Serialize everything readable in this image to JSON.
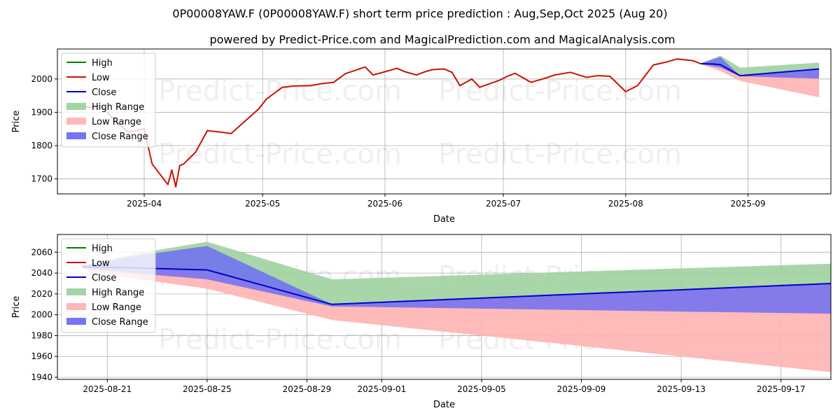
{
  "title": "0P00008YAW.F (0P00008YAW.F) short term price prediction : Aug,Sep,Oct 2025 (Aug 20)",
  "subtitle": "powered by Predict-Price.com and MagicalPrediction.com and MagicalAnalysis.com",
  "watermark": "Predict-Price.com",
  "colors": {
    "high": "#008000",
    "low": "#cc1100",
    "close": "#0000cc",
    "high_range": "#9ed29e",
    "low_range": "#ffb3b3",
    "close_range": "#6e6ef2",
    "grid": "#b0b0b0"
  },
  "chart_data": [
    {
      "type": "line",
      "xlabel": "Date",
      "ylabel": "Price",
      "xlim": [
        "2025-03-10",
        "2025-09-22"
      ],
      "ylim": [
        1655,
        2090
      ],
      "grid": true,
      "legend_position": "upper-left",
      "x_ticks": [
        "2025-04",
        "2025-05",
        "2025-06",
        "2025-07",
        "2025-08",
        "2025-09"
      ],
      "y_ticks": [
        1700,
        1800,
        1900,
        2000
      ],
      "legend": [
        "High",
        "Low",
        "Close",
        "High Range",
        "Low Range",
        "Close Range"
      ],
      "series": [
        {
          "name": "Low",
          "x": [
            "2025-03-14",
            "2025-03-18",
            "2025-03-21",
            "2025-03-25",
            "2025-03-28",
            "2025-04-01",
            "2025-04-03",
            "2025-04-07",
            "2025-04-08",
            "2025-04-09",
            "2025-04-10",
            "2025-04-11",
            "2025-04-14",
            "2025-04-17",
            "2025-04-22",
            "2025-04-23",
            "2025-04-30",
            "2025-05-02",
            "2025-05-06",
            "2025-05-09",
            "2025-05-13",
            "2025-05-16",
            "2025-05-19",
            "2025-05-22",
            "2025-05-27",
            "2025-05-29",
            "2025-06-02",
            "2025-06-04",
            "2025-06-06",
            "2025-06-09",
            "2025-06-11",
            "2025-06-13",
            "2025-06-16",
            "2025-06-18",
            "2025-06-20",
            "2025-06-23",
            "2025-06-25",
            "2025-06-30",
            "2025-07-02",
            "2025-07-04",
            "2025-07-08",
            "2025-07-11",
            "2025-07-14",
            "2025-07-18",
            "2025-07-22",
            "2025-07-25",
            "2025-07-28",
            "2025-08-01",
            "2025-08-04",
            "2025-08-08",
            "2025-08-11",
            "2025-08-14",
            "2025-08-18",
            "2025-08-20"
          ],
          "values": [
            1920,
            1915,
            1920,
            1870,
            1840,
            1850,
            1745,
            1683,
            1727,
            1676,
            1740,
            1745,
            1780,
            1845,
            1838,
            1836,
            1910,
            1940,
            1975,
            1979,
            1980,
            1986,
            1990,
            2016,
            2036,
            2012,
            2025,
            2032,
            2022,
            2012,
            2021,
            2028,
            2030,
            2020,
            1980,
            2000,
            1975,
            1996,
            2008,
            2017,
            1990,
            2000,
            2012,
            2020,
            2005,
            2010,
            2008,
            1962,
            1980,
            2042,
            2050,
            2060,
            2055,
            2046
          ]
        },
        {
          "name": "Close",
          "x": [
            "2025-08-20",
            "2025-08-23",
            "2025-08-25",
            "2025-08-30",
            "2025-09-19"
          ],
          "values": [
            2046,
            2045,
            2043,
            2010,
            2030
          ]
        },
        {
          "name": "High Range",
          "x": [
            "2025-08-20",
            "2025-08-25",
            "2025-08-30",
            "2025-09-19"
          ],
          "upper": [
            2047,
            2070,
            2034,
            2049
          ],
          "lower": [
            2046,
            2043,
            2010,
            2030
          ]
        },
        {
          "name": "Low Range",
          "x": [
            "2025-08-20",
            "2025-08-25",
            "2025-08-30",
            "2025-09-19"
          ],
          "upper": [
            2046,
            2043,
            2010,
            2030
          ],
          "lower": [
            2044,
            2024,
            1994,
            1945
          ]
        },
        {
          "name": "Close Range",
          "x": [
            "2025-08-20",
            "2025-08-25",
            "2025-08-30",
            "2025-09-19"
          ],
          "upper": [
            2047,
            2066,
            2010,
            2030
          ],
          "lower": [
            2045,
            2034,
            2008,
            2001
          ]
        }
      ]
    },
    {
      "type": "line",
      "xlabel": "Date",
      "ylabel": "Price",
      "xlim": [
        "2025-08-19",
        "2025-09-19"
      ],
      "ylim": [
        1938,
        2077
      ],
      "grid": true,
      "legend_position": "upper-left",
      "x_ticks": [
        "2025-08-21",
        "2025-08-25",
        "2025-08-29",
        "2025-09-01",
        "2025-09-05",
        "2025-09-09",
        "2025-09-13",
        "2025-09-17"
      ],
      "y_ticks": [
        1940,
        1960,
        1980,
        2000,
        2020,
        2040,
        2060
      ],
      "legend": [
        "High",
        "Low",
        "Close",
        "High Range",
        "Low Range",
        "Close Range"
      ],
      "series": [
        {
          "name": "Close",
          "x": [
            "2025-08-20",
            "2025-08-22",
            "2025-08-25",
            "2025-08-30",
            "2025-09-19"
          ],
          "values": [
            2046,
            2045,
            2043,
            2010,
            2030
          ]
        },
        {
          "name": "High Range",
          "x": [
            "2025-08-20",
            "2025-08-22",
            "2025-08-25",
            "2025-08-30",
            "2025-09-19"
          ],
          "upper": [
            2047,
            2058,
            2070,
            2034,
            2049
          ],
          "lower": [
            2046,
            2045,
            2043,
            2010,
            2030
          ]
        },
        {
          "name": "Low Range",
          "x": [
            "2025-08-20",
            "2025-08-22",
            "2025-08-25",
            "2025-08-30",
            "2025-09-19"
          ],
          "upper": [
            2046,
            2045,
            2043,
            2010,
            2030
          ],
          "lower": [
            2044,
            2035,
            2025,
            1995,
            1945
          ]
        },
        {
          "name": "Close Range",
          "x": [
            "2025-08-20",
            "2025-08-22",
            "2025-08-25",
            "2025-08-30",
            "2025-09-19"
          ],
          "upper": [
            2047,
            2056,
            2066,
            2010,
            2030
          ],
          "lower": [
            2045,
            2040,
            2034,
            2008,
            2001
          ]
        }
      ]
    }
  ]
}
